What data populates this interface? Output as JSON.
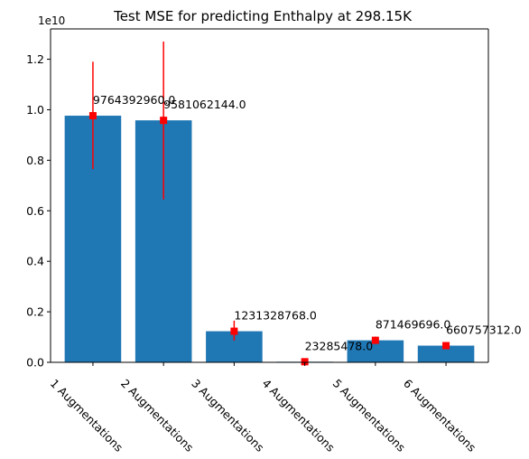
{
  "chart_data": {
    "type": "bar",
    "title": "Test MSE for predicting Enthalpy at 298.15K",
    "xlabel": "",
    "ylabel": "",
    "categories": [
      "1 Augmentations",
      "2 Augmentations",
      "3 Augmentations",
      "4 Augmentations",
      "5 Augmentations",
      "6 Augmentations"
    ],
    "values": [
      9764392960.0,
      9581062144.0,
      1231328768.0,
      23285478.0,
      871469696.0,
      660757312.0
    ],
    "value_labels": [
      "9764392960.0",
      "9581062144.0",
      "1231328768.0",
      "23285478.0",
      "871469696.0",
      "660757312.0"
    ],
    "error_low": [
      7650000000,
      6450000000,
      860000000,
      0,
      760000000,
      560000000
    ],
    "error_high": [
      11900000000,
      12700000000,
      1650000000,
      60000000,
      1020000000,
      790000000
    ],
    "ylim": [
      0,
      13200000000
    ],
    "yticks": [
      0,
      2000000000,
      4000000000,
      6000000000,
      8000000000,
      10000000000,
      12000000000
    ],
    "ytick_labels": [
      "0.0",
      "0.2",
      "0.4",
      "0.6",
      "0.8",
      "1.0",
      "1.2"
    ],
    "y_offset_label": "1e10",
    "grid": false,
    "bar_color": "#1f77b4",
    "error_color": "#ff0000"
  }
}
